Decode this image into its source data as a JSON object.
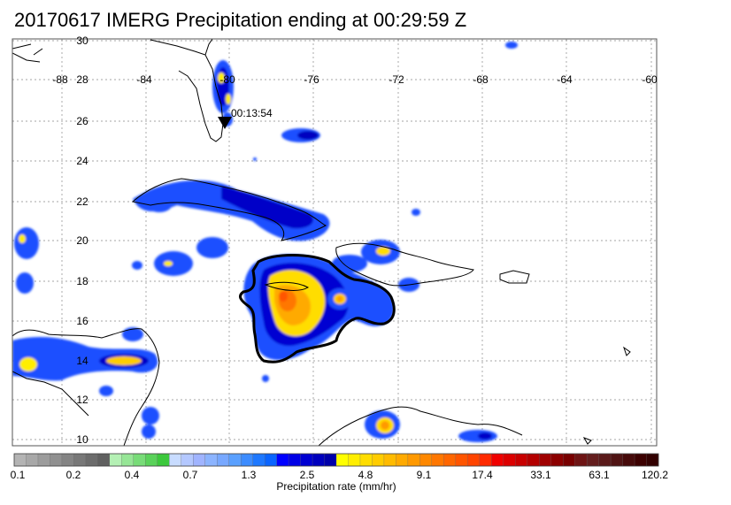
{
  "title": "20170617 IMERG Precipitation ending at 00:29:59 Z",
  "map": {
    "lon_labels": [
      "-88",
      "-84",
      "-80",
      "-76",
      "-72",
      "-68",
      "-64",
      "-60"
    ],
    "lat_labels": [
      "30",
      "28",
      "26",
      "24",
      "22",
      "20",
      "18",
      "16",
      "14",
      "12",
      "10"
    ],
    "track_time_label": "00:13:54",
    "marker_icon": "down-triangle-marker-icon"
  },
  "colorbar": {
    "tick_labels": [
      "0.1",
      "0.2",
      "0.4",
      "0.7",
      "1.3",
      "2.5",
      "4.8",
      "9.1",
      "17.4",
      "33.1",
      "63.1",
      "120.2"
    ],
    "title": "Precipitation rate (mm/hr)",
    "colors": [
      "#b4b4b4",
      "#a8a8a8",
      "#9c9c9c",
      "#909090",
      "#848484",
      "#787878",
      "#6c6c6c",
      "#606060",
      "#b4f0b4",
      "#96e696",
      "#78dc78",
      "#5ad25a",
      "#3cc83c",
      "#c8dcff",
      "#b4c8ff",
      "#a0b4ff",
      "#8cb4ff",
      "#78a8ff",
      "#5aa0ff",
      "#3c8cff",
      "#1e78ff",
      "#0a64ff",
      "#0000ff",
      "#0000e6",
      "#0000d2",
      "#0000be",
      "#0000aa",
      "#ffff00",
      "#ffee00",
      "#ffdd00",
      "#ffcc00",
      "#ffbb00",
      "#ffaa00",
      "#ff9900",
      "#ff8800",
      "#ff7700",
      "#ff6600",
      "#ff5500",
      "#ff4400",
      "#ff2a00",
      "#f00000",
      "#dc0000",
      "#c80000",
      "#b40000",
      "#a00000",
      "#8c0000",
      "#780000",
      "#6e1414",
      "#641e1e",
      "#5a1a1a",
      "#501414",
      "#460a0a",
      "#3c0000",
      "#320000"
    ]
  }
}
